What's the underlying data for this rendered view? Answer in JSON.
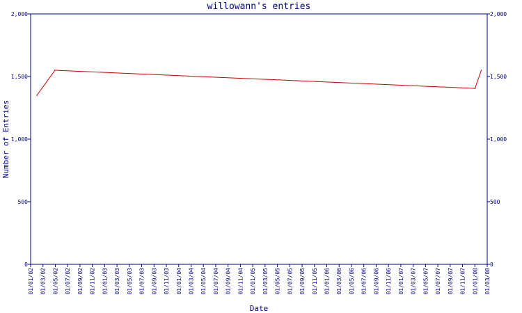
{
  "chart_data": {
    "type": "line",
    "title": "willowann's entries",
    "xlabel": "Date",
    "ylabel": "Number of Entries",
    "ylim": [
      0,
      2000
    ],
    "y_ticks": [
      0,
      500,
      1000,
      1500,
      2000
    ],
    "y_tick_labels": [
      "0",
      "500",
      "1,000",
      "1,500",
      "2,000"
    ],
    "x_tick_labels": [
      "01/01/02",
      "01/03/02",
      "01/05/02",
      "01/07/02",
      "01/09/02",
      "01/11/02",
      "01/01/03",
      "01/03/03",
      "01/05/03",
      "01/07/03",
      "01/09/03",
      "01/11/03",
      "01/01/04",
      "01/03/04",
      "01/05/04",
      "01/07/04",
      "01/09/04",
      "01/11/04",
      "01/01/05",
      "01/03/05",
      "01/05/05",
      "01/07/05",
      "01/09/05",
      "01/11/05",
      "01/01/06",
      "01/03/06",
      "01/05/06",
      "01/07/06",
      "01/09/06",
      "01/11/06",
      "01/01/07",
      "01/03/07",
      "01/05/07",
      "01/07/07",
      "01/09/07",
      "01/11/07",
      "01/01/08",
      "01/03/08"
    ],
    "grid": false,
    "line_color": "#cc0000",
    "axis_color": "#000080",
    "series": [
      {
        "x": [
          "01/02/02",
          "01/05/02",
          "01/01/08",
          "01/02/08"
        ],
        "values": [
          1350,
          1550,
          1405,
          1550
        ]
      }
    ]
  }
}
